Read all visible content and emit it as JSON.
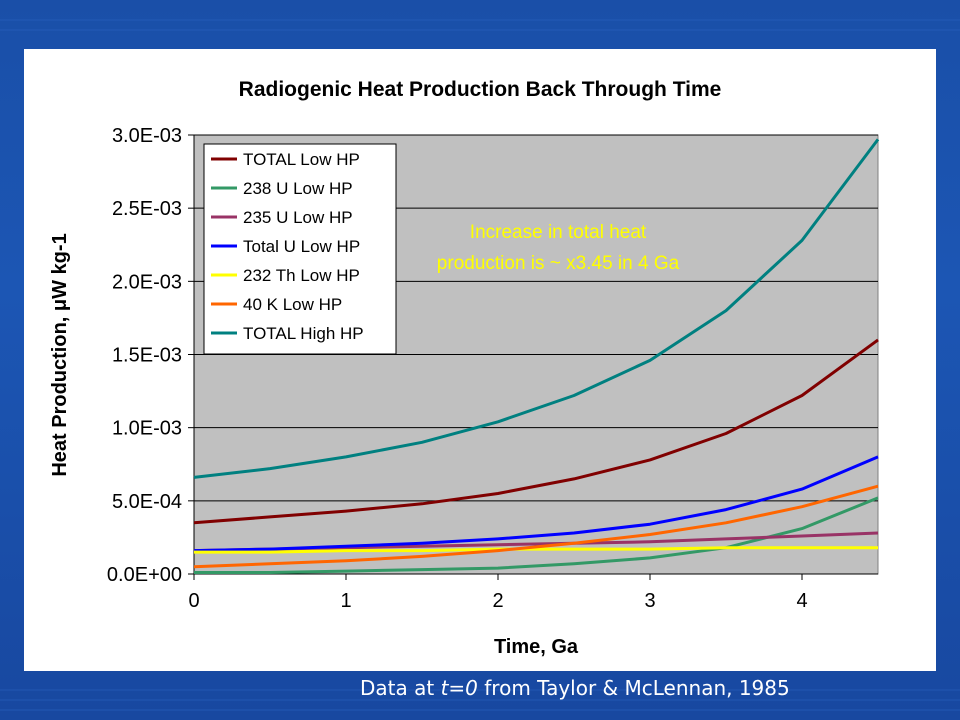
{
  "colors": {
    "plot_background": "#c0c0c0",
    "annotation_text": "#ffff00",
    "slide_background": "#1c52b0"
  },
  "footer": {
    "prefix": "Data at ",
    "italic": "t=0",
    "suffix": " from Taylor & McLennan, 1985"
  },
  "chart_data": {
    "type": "line",
    "title": "Radiogenic Heat Production  Back Through Time",
    "xlabel": "Time, Ga",
    "ylabel": "Heat Production, μW kg-1",
    "xlim": [
      0,
      4.5
    ],
    "ylim": [
      0,
      0.003
    ],
    "x_ticks": [
      0,
      1,
      2,
      3,
      4
    ],
    "x_tick_labels": [
      "0",
      "1",
      "2",
      "3",
      "4"
    ],
    "y_ticks": [
      0,
      0.0005,
      0.001,
      0.0015,
      0.002,
      0.0025,
      0.003
    ],
    "y_tick_labels": [
      "0.0E+00",
      "5.0E-04",
      "1.0E-03",
      "1.5E-03",
      "2.0E-03",
      "2.5E-03",
      "3.0E-03"
    ],
    "grid": "horizontal",
    "legend_position": "top-left",
    "annotation": "Increase in total heat\nproduction is ~ x3.45 in 4 Ga",
    "x": [
      0,
      0.5,
      1,
      1.5,
      2,
      2.5,
      3,
      3.5,
      4,
      4.5
    ],
    "series": [
      {
        "name": "TOTAL Low HP",
        "color": "#800000",
        "values": [
          0.00035,
          0.00039,
          0.00043,
          0.00048,
          0.00055,
          0.00065,
          0.00078,
          0.00096,
          0.00122,
          0.0016
        ]
      },
      {
        "name": "238 U Low HP",
        "color": "#339966",
        "values": [
          1e-05,
          1e-05,
          2e-05,
          3e-05,
          4e-05,
          7e-05,
          0.00011,
          0.00018,
          0.00031,
          0.00052
        ]
      },
      {
        "name": "235 U Low HP",
        "color": "#993366",
        "values": [
          0.00016,
          0.00017,
          0.00018,
          0.00019,
          0.0002,
          0.00021,
          0.00022,
          0.00024,
          0.00026,
          0.00028
        ]
      },
      {
        "name": "Total U Low HP",
        "color": "#0000ff",
        "values": [
          0.00016,
          0.00017,
          0.00019,
          0.00021,
          0.00024,
          0.00028,
          0.00034,
          0.00044,
          0.00058,
          0.0008
        ]
      },
      {
        "name": "232 Th Low HP",
        "color": "#ffff00",
        "values": [
          0.00015,
          0.00015,
          0.00016,
          0.00016,
          0.00017,
          0.00017,
          0.00017,
          0.00018,
          0.00018,
          0.00018
        ]
      },
      {
        "name": "40 K Low HP",
        "color": "#ff6600",
        "values": [
          5e-05,
          7e-05,
          9e-05,
          0.00012,
          0.00016,
          0.00021,
          0.00027,
          0.00035,
          0.00046,
          0.0006
        ]
      },
      {
        "name": "TOTAL High HP",
        "color": "#008080",
        "values": [
          0.00066,
          0.00072,
          0.0008,
          0.0009,
          0.00104,
          0.00122,
          0.00146,
          0.0018,
          0.00228,
          0.00297
        ]
      }
    ]
  }
}
